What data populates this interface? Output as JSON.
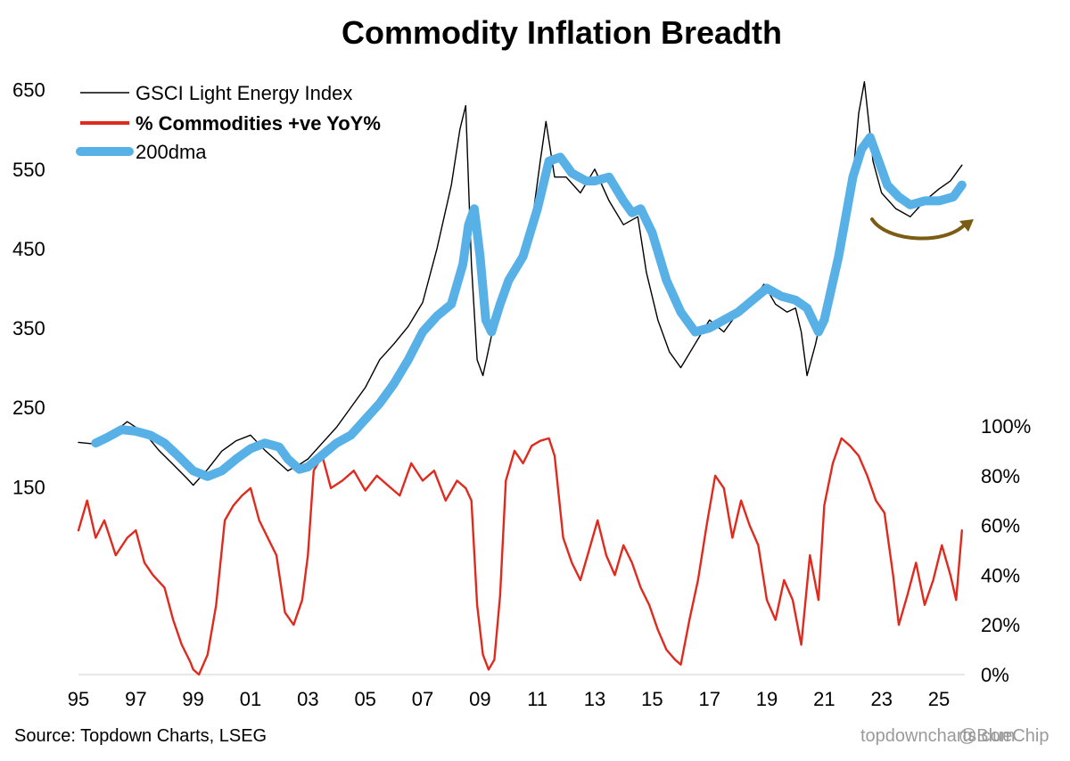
{
  "chart_data": {
    "type": "line",
    "title": "Commodity Inflation Breadth",
    "x_ticks": [
      "95",
      "97",
      "99",
      "01",
      "03",
      "05",
      "07",
      "09",
      "11",
      "13",
      "15",
      "17",
      "19",
      "21",
      "23",
      "25"
    ],
    "x_range": [
      1995,
      2025.9
    ],
    "left_axis": {
      "ticks": [
        "650",
        "550",
        "450",
        "350",
        "250",
        "150"
      ],
      "values": [
        650,
        550,
        450,
        350,
        250,
        150
      ],
      "range": [
        120,
        690
      ]
    },
    "right_axis": {
      "ticks": [
        "100%",
        "80%",
        "60%",
        "40%",
        "20%",
        "0%"
      ],
      "values": [
        100,
        80,
        60,
        40,
        20,
        0
      ],
      "range": [
        0,
        105
      ]
    },
    "legend": [
      {
        "label": "GSCI Light Energy Index",
        "color": "#000000",
        "bold": false
      },
      {
        "label": "% Commodities +ve YoY%",
        "color": "#e02a1e",
        "bold": true
      },
      {
        "label": "200dma",
        "color": "#58b1e6",
        "bold": false
      }
    ],
    "series": [
      {
        "name": "GSCI Light Energy Index",
        "axis": "left",
        "color": "#000000",
        "x": [
          1995,
          1995.5,
          1996,
          1996.7,
          1997.3,
          1997.8,
          1998.3,
          1998.8,
          1999.0,
          1999.5,
          2000.0,
          2000.5,
          2001.0,
          2001.5,
          2001.9,
          2002.3,
          2002.7,
          2003.0,
          2003.5,
          2004.0,
          2004.5,
          2005.0,
          2005.5,
          2006.0,
          2006.5,
          2007.0,
          2007.5,
          2008.0,
          2008.3,
          2008.5,
          2008.7,
          2008.9,
          2009.1,
          2009.4,
          2009.8,
          2010.3,
          2010.8,
          2011.1,
          2011.3,
          2011.6,
          2012.0,
          2012.5,
          2013.0,
          2013.5,
          2014.0,
          2014.5,
          2014.8,
          2015.2,
          2015.6,
          2016.0,
          2016.5,
          2017.0,
          2017.5,
          2018.0,
          2018.5,
          2018.9,
          2019.3,
          2019.7,
          2020.0,
          2020.2,
          2020.4,
          2020.7,
          2021.0,
          2021.5,
          2022.0,
          2022.2,
          2022.4,
          2022.7,
          2023.0,
          2023.5,
          2024.0,
          2024.5,
          2025.0,
          2025.4,
          2025.8
        ],
        "y": [
          206,
          204,
          212,
          232,
          218,
          196,
          178,
          160,
          152,
          172,
          195,
          208,
          215,
          196,
          183,
          170,
          178,
          185,
          205,
          225,
          250,
          275,
          310,
          330,
          352,
          382,
          450,
          530,
          600,
          630,
          430,
          310,
          290,
          340,
          400,
          430,
          480,
          560,
          610,
          540,
          540,
          520,
          550,
          510,
          480,
          490,
          420,
          360,
          320,
          300,
          330,
          360,
          345,
          370,
          385,
          405,
          380,
          370,
          375,
          345,
          290,
          330,
          380,
          450,
          540,
          620,
          660,
          560,
          520,
          500,
          490,
          510,
          525,
          535,
          555
        ]
      },
      {
        "name": "200dma",
        "axis": "left",
        "color": "#58b1e6",
        "x": [
          1995.6,
          1996.0,
          1996.5,
          1997.0,
          1997.5,
          1998.0,
          1998.5,
          1999.0,
          1999.5,
          2000.0,
          2000.5,
          2001.0,
          2001.5,
          2002.0,
          2002.3,
          2002.7,
          2003.0,
          2003.5,
          2004.0,
          2004.5,
          2005.0,
          2005.5,
          2006.0,
          2006.5,
          2007.0,
          2007.5,
          2008.0,
          2008.4,
          2008.6,
          2008.8,
          2009.0,
          2009.2,
          2009.4,
          2009.7,
          2010.0,
          2010.5,
          2011.0,
          2011.4,
          2011.8,
          2012.2,
          2012.7,
          2013.0,
          2013.5,
          2014.0,
          2014.3,
          2014.6,
          2015.0,
          2015.5,
          2016.0,
          2016.5,
          2017.0,
          2017.5,
          2018.0,
          2018.5,
          2019.0,
          2019.5,
          2020.0,
          2020.4,
          2020.8,
          2021.0,
          2021.5,
          2022.0,
          2022.3,
          2022.6,
          2022.9,
          2023.2,
          2023.6,
          2024.0,
          2024.5,
          2025.0,
          2025.5,
          2025.8
        ],
        "y": [
          205,
          212,
          222,
          220,
          215,
          205,
          188,
          170,
          163,
          170,
          185,
          198,
          205,
          200,
          185,
          172,
          175,
          190,
          205,
          215,
          235,
          255,
          280,
          310,
          345,
          365,
          380,
          430,
          480,
          500,
          440,
          360,
          345,
          380,
          410,
          440,
          500,
          560,
          565,
          545,
          535,
          535,
          540,
          510,
          495,
          500,
          470,
          410,
          370,
          345,
          350,
          360,
          370,
          385,
          400,
          390,
          385,
          375,
          345,
          360,
          440,
          540,
          575,
          590,
          560,
          530,
          515,
          505,
          510,
          510,
          515,
          530
        ]
      },
      {
        "name": "% Commodities +ve YoY%",
        "axis": "right",
        "color": "#e02a1e",
        "x": [
          1995.0,
          1995.3,
          1995.6,
          1995.9,
          1996.3,
          1996.7,
          1997.0,
          1997.3,
          1997.6,
          1998.0,
          1998.3,
          1998.6,
          1998.9,
          1999.0,
          1999.2,
          1999.5,
          1999.8,
          2000.1,
          2000.4,
          2000.7,
          2001.0,
          2001.3,
          2001.6,
          2001.9,
          2002.2,
          2002.5,
          2002.8,
          2003.0,
          2003.2,
          2003.5,
          2003.8,
          2004.2,
          2004.6,
          2005.0,
          2005.4,
          2005.8,
          2006.2,
          2006.6,
          2007.0,
          2007.4,
          2007.8,
          2008.2,
          2008.5,
          2008.7,
          2008.9,
          2009.1,
          2009.3,
          2009.5,
          2009.7,
          2009.9,
          2010.2,
          2010.5,
          2010.8,
          2011.1,
          2011.4,
          2011.6,
          2011.9,
          2012.2,
          2012.5,
          2012.8,
          2013.1,
          2013.4,
          2013.7,
          2014.0,
          2014.3,
          2014.6,
          2014.9,
          2015.2,
          2015.5,
          2015.8,
          2016.0,
          2016.3,
          2016.6,
          2016.9,
          2017.2,
          2017.5,
          2017.8,
          2018.1,
          2018.4,
          2018.7,
          2019.0,
          2019.3,
          2019.6,
          2019.9,
          2020.2,
          2020.5,
          2020.8,
          2021.0,
          2021.3,
          2021.6,
          2021.9,
          2022.2,
          2022.5,
          2022.8,
          2023.1,
          2023.4,
          2023.6,
          2023.9,
          2024.2,
          2024.5,
          2024.8,
          2025.1,
          2025.4,
          2025.6,
          2025.8
        ],
        "y": [
          58,
          70,
          55,
          62,
          48,
          55,
          58,
          45,
          40,
          35,
          22,
          12,
          5,
          2,
          0,
          8,
          28,
          62,
          68,
          72,
          75,
          62,
          55,
          48,
          25,
          20,
          30,
          48,
          82,
          88,
          75,
          78,
          82,
          74,
          80,
          76,
          72,
          85,
          78,
          82,
          70,
          78,
          75,
          70,
          28,
          8,
          2,
          6,
          32,
          78,
          90,
          85,
          92,
          94,
          95,
          88,
          55,
          45,
          38,
          50,
          62,
          48,
          40,
          52,
          45,
          35,
          28,
          18,
          10,
          6,
          4,
          22,
          38,
          60,
          80,
          75,
          55,
          70,
          60,
          52,
          30,
          22,
          38,
          30,
          12,
          48,
          30,
          68,
          85,
          95,
          92,
          88,
          80,
          70,
          65,
          40,
          20,
          32,
          45,
          28,
          38,
          52,
          40,
          30,
          58
        ]
      }
    ],
    "annotation": {
      "type": "curved-arrow",
      "description": "curved arrow under 2023-2025 indicating upturn"
    },
    "source": "Source: Topdown Charts, LSEG",
    "website": "topdowncharts.com",
    "watermark": "@BlueChip"
  }
}
